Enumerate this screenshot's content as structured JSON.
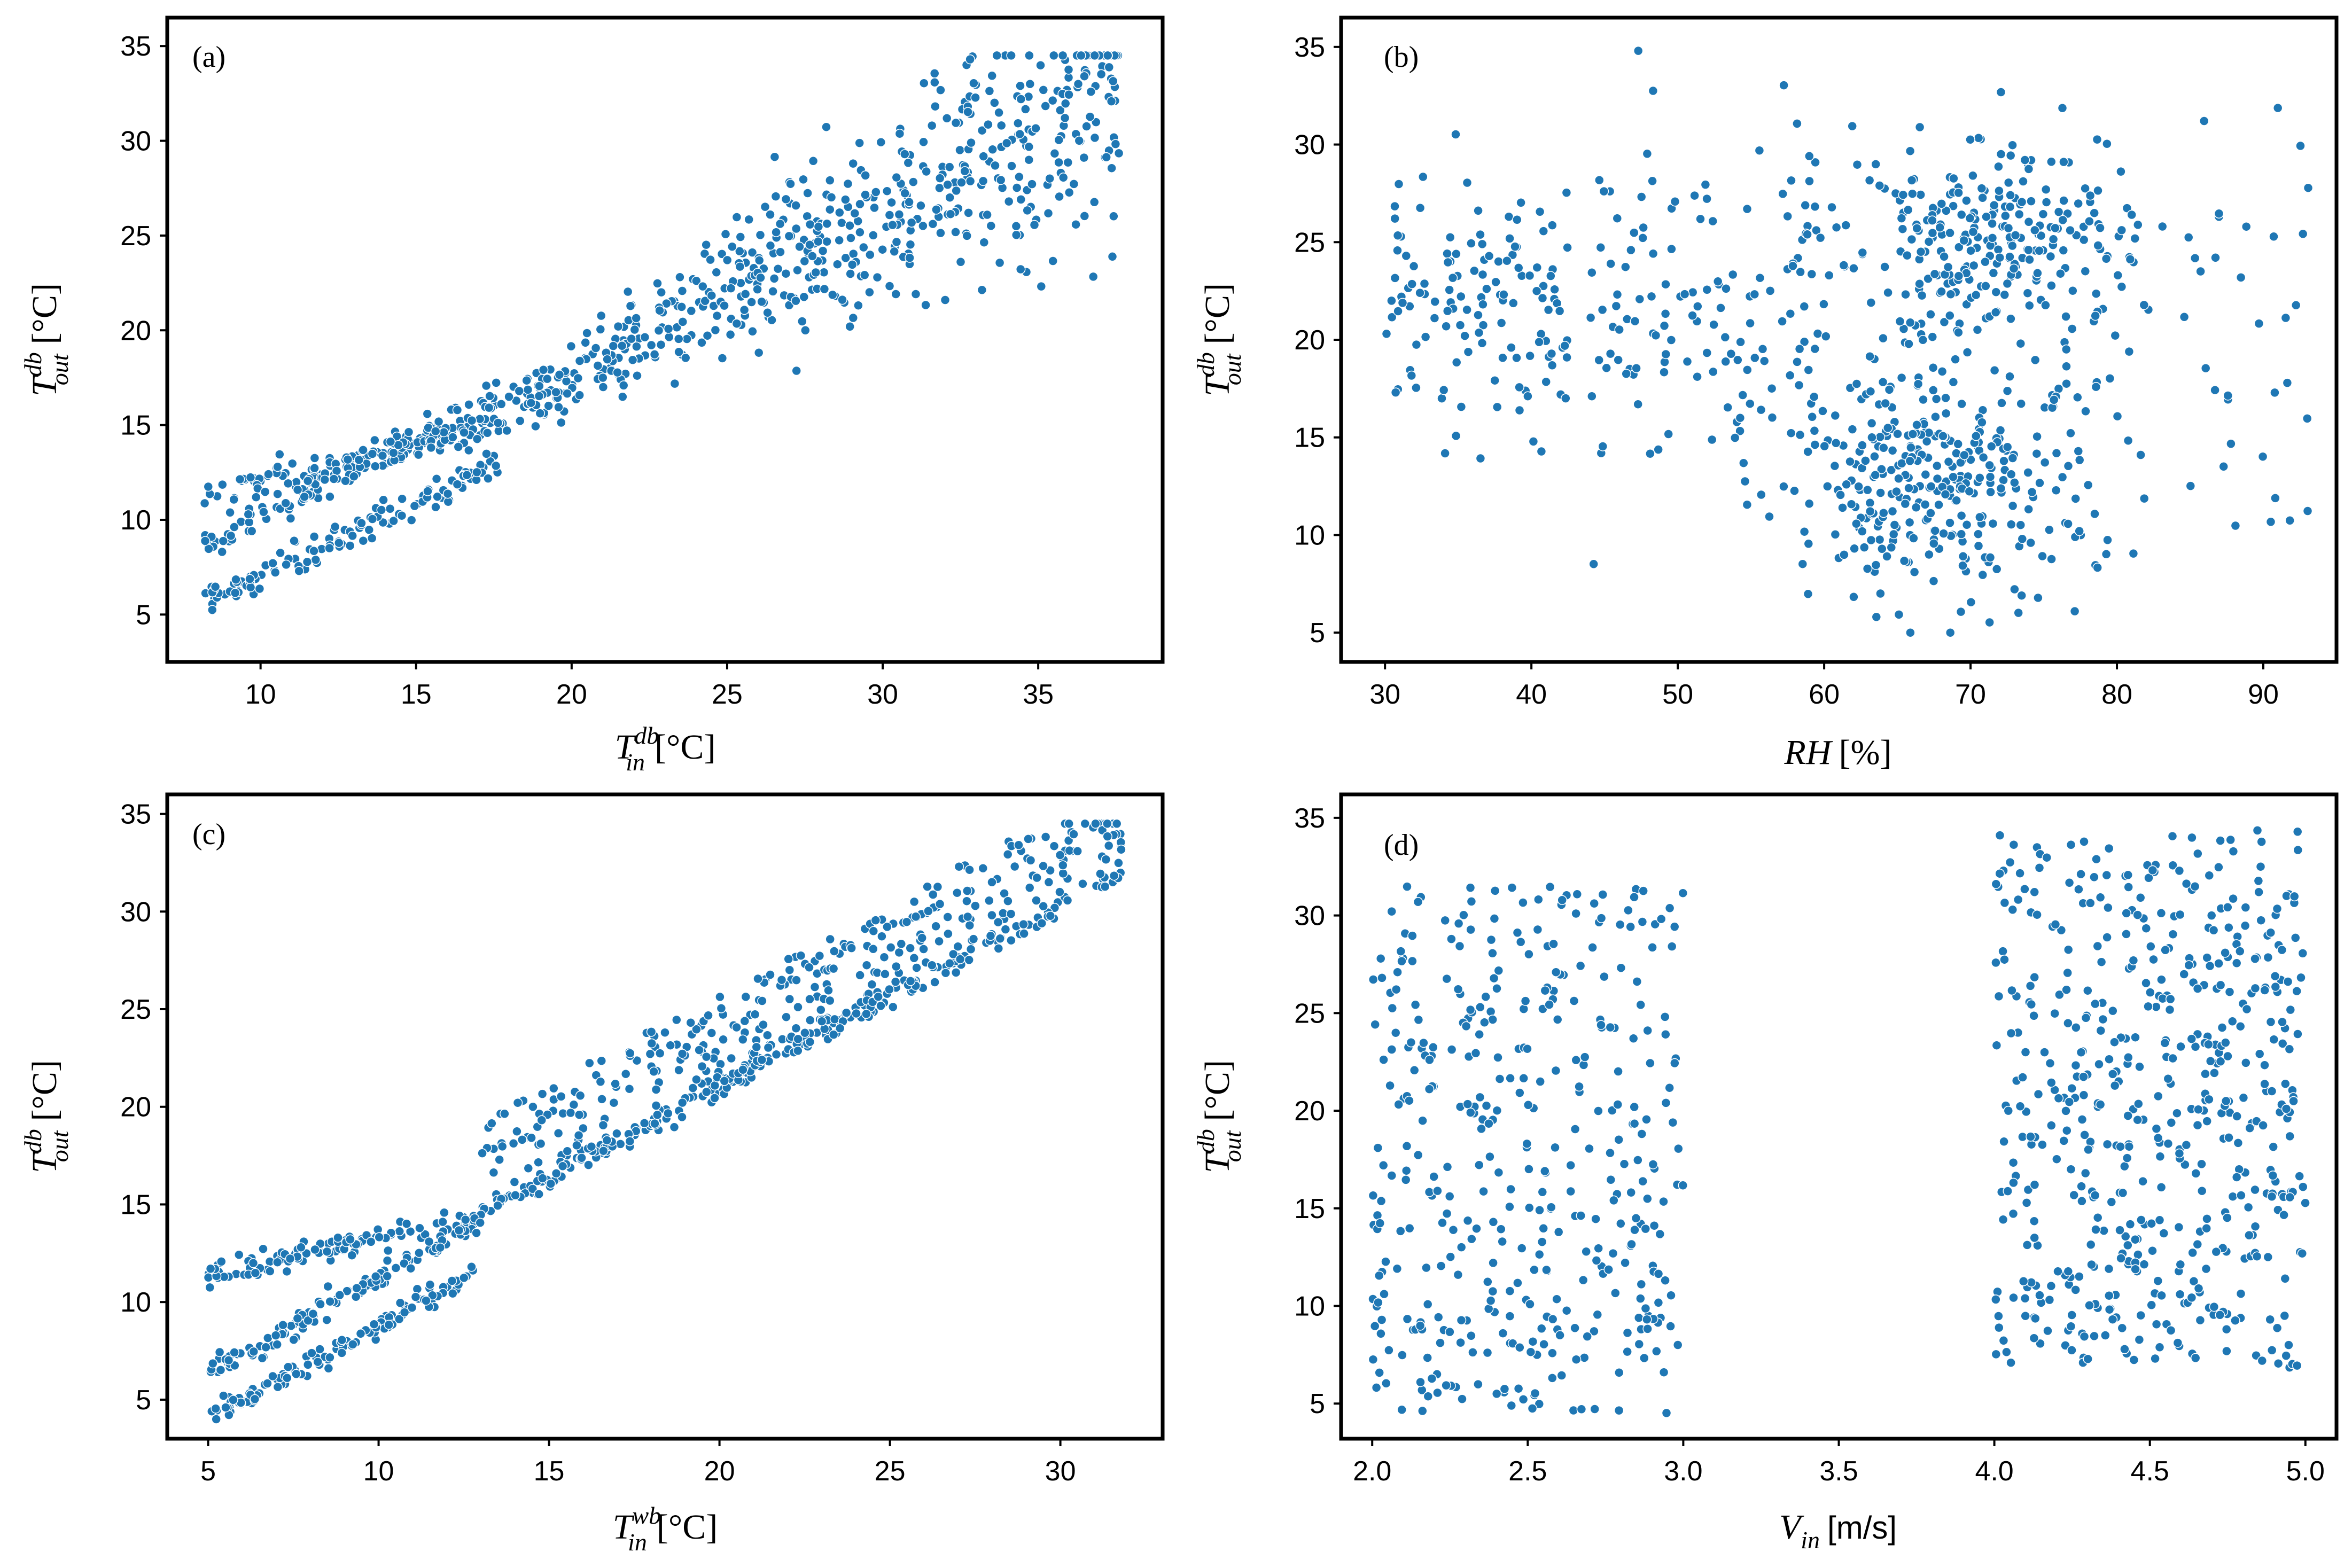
{
  "colors": {
    "point": "#1f77b4",
    "frame": "#000000"
  },
  "chart_data": [
    {
      "type": "scatter",
      "panel_label": "(a)",
      "title": "",
      "xlabel": {
        "base": "T",
        "sup": "db",
        "sub": "in",
        "unit": "[°C]"
      },
      "ylabel": {
        "base": "T",
        "sup": "db",
        "sub": "out",
        "unit": "[°C]"
      },
      "xlim": [
        7,
        39
      ],
      "ylim": [
        2.5,
        36.5
      ],
      "xticks": [
        10,
        15,
        20,
        25,
        30,
        35
      ],
      "yticks": [
        5,
        10,
        15,
        20,
        25,
        30,
        35
      ],
      "generator": "a",
      "n_points": 950,
      "series": [
        {
          "name": "lower band",
          "relation": "y ≈ 0.77x - 0.6",
          "x_range": [
            8.2,
            18
          ]
        },
        {
          "name": "middle band",
          "relation": "y ≈ 0.82x + 2",
          "x_range": [
            8.2,
            18
          ]
        },
        {
          "name": "upper band",
          "relation": "y ≈ 0.38x + 8.3",
          "x_range": [
            8.2,
            18
          ]
        },
        {
          "name": "spread region",
          "relation": "y ≈ 0.86x + 0.5 ± 4",
          "x_range": [
            18,
            37.7
          ]
        }
      ]
    },
    {
      "type": "scatter",
      "panel_label": "(b)",
      "title": "",
      "xlabel": {
        "base": "RH",
        "unit": "[%]"
      },
      "ylabel": {
        "base": "T",
        "sup": "db",
        "sub": "out",
        "unit": "[°C]"
      },
      "xlim": [
        27,
        95
      ],
      "ylim": [
        3.5,
        36.5
      ],
      "xticks": [
        30,
        40,
        50,
        60,
        70,
        80,
        90
      ],
      "yticks": [
        5,
        10,
        15,
        20,
        25,
        30,
        35
      ],
      "generator": "b",
      "n_points": 950,
      "series": [
        {
          "name": "cluster dry",
          "x_range": [
            30,
            42
          ],
          "y_range": [
            15,
            30
          ]
        },
        {
          "name": "cluster humid-cool",
          "x_center": 67,
          "y_center": 12
        },
        {
          "name": "cluster humid-warm",
          "x_center": 72,
          "y_center": 25
        },
        {
          "name": "sparse tail",
          "x_range": [
            85,
            93
          ],
          "y_range": [
            10,
            33
          ]
        }
      ]
    },
    {
      "type": "scatter",
      "panel_label": "(c)",
      "title": "",
      "xlabel": {
        "base": "T",
        "sup": "wb",
        "sub": "in",
        "unit": "[°C]"
      },
      "ylabel": {
        "base": "T",
        "sup": "db",
        "sub": "out",
        "unit": "[°C]"
      },
      "xlim": [
        3.8,
        33
      ],
      "ylim": [
        3,
        36
      ],
      "xticks": [
        5,
        10,
        15,
        20,
        25,
        30
      ],
      "yticks": [
        5,
        10,
        15,
        20,
        25,
        30,
        35
      ],
      "generator": "c",
      "n_points": 950,
      "series": [
        {
          "name": "lower band",
          "relation": "y ≈ 0.96x - 0.8",
          "x_range": [
            5,
            13
          ]
        },
        {
          "name": "middle band",
          "relation": "y ≈ 0.96x + 1.6",
          "x_range": [
            5,
            13
          ]
        },
        {
          "name": "upper band",
          "relation": "y ≈ 0.38x + 9.5",
          "x_range": [
            5,
            13
          ]
        },
        {
          "name": "lower envelope",
          "relation": "y ≈ 0.93x + 2.4",
          "x_range": [
            13,
            31.8
          ]
        },
        {
          "name": "scatter above envelope",
          "relation": "y ≈ 0.93x + 2.4 + [0, 5]",
          "x_range": [
            13,
            31.8
          ]
        }
      ]
    },
    {
      "type": "scatter",
      "panel_label": "(d)",
      "title": "",
      "xlabel": {
        "base": "V",
        "sub": "in",
        "unit": "[m/s]"
      },
      "ylabel": {
        "base": "T",
        "sup": "db",
        "sub": "out",
        "unit": "[°C]"
      },
      "xlim": [
        1.9,
        5.1
      ],
      "ylim": [
        3.2,
        36.2
      ],
      "xticks": [
        2.0,
        2.5,
        3.0,
        3.5,
        4.0,
        4.5,
        5.0
      ],
      "xtick_labels": [
        "2.0",
        "2.5",
        "3.0",
        "3.5",
        "4.0",
        "4.5",
        "5.0"
      ],
      "yticks": [
        5,
        10,
        15,
        20,
        25,
        30,
        35
      ],
      "generator": "d",
      "n_points": 950,
      "series": [
        {
          "name": "low speed",
          "x_range": [
            2.0,
            3.0
          ],
          "y_range": [
            4.5,
            31.5
          ]
        },
        {
          "name": "high speed",
          "x_range": [
            4.0,
            5.0
          ],
          "y_range": [
            6.8,
            34.5
          ]
        }
      ]
    }
  ]
}
